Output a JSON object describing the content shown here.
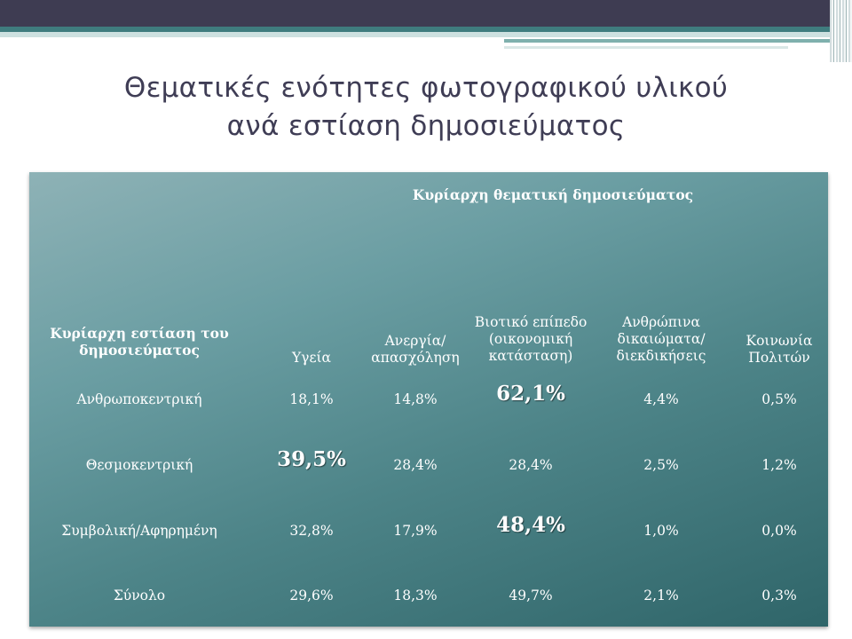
{
  "slide": {
    "title_line1": "Θεματικές ενότητες φωτογραφικού υλικού",
    "title_line2": "ανά εστίαση δημοσιεύματος"
  },
  "table": {
    "super_header": "Κυρίαρχη θεματική δημοσιεύματος",
    "row_header_line1": "Κυρίαρχη εστίαση του",
    "row_header_line2": "δημοσιεύματος",
    "columns": [
      {
        "line1": "Υγεία",
        "line2": "",
        "line3": ""
      },
      {
        "line1": "Ανεργία/",
        "line2": "απασχόληση",
        "line3": ""
      },
      {
        "line1": "Βιοτικό επίπεδο",
        "line2": "(οικονομική",
        "line3": "κατάσταση)"
      },
      {
        "line1": "Ανθρώπινα",
        "line2": "δικαιώματα/",
        "line3": "διεκδικήσεις"
      },
      {
        "line1": "Κοινωνία",
        "line2": "Πολιτών",
        "line3": ""
      }
    ],
    "rows": [
      {
        "label": "Ανθρωποκεντρική",
        "values": [
          "18,1%",
          "14,8%",
          "62,1%",
          "4,4%",
          "0,5%"
        ]
      },
      {
        "label": "Θεσμοκεντρική",
        "values": [
          "39,5%",
          "28,4%",
          "28,4%",
          "2,5%",
          "1,2%"
        ]
      },
      {
        "label": "Συμβολική/Αφηρημένη",
        "values": [
          "32,8%",
          "17,9%",
          "48,4%",
          "1,0%",
          "0,0%"
        ]
      },
      {
        "label": "Σύνολο",
        "values": [
          "29,6%",
          "18,3%",
          "49,7%",
          "2,1%",
          "0,3%"
        ]
      }
    ]
  },
  "colors": {
    "header_bar": "#3e3c52",
    "accent_teal": "#3f7c7e",
    "title_text": "#3f3d55"
  }
}
